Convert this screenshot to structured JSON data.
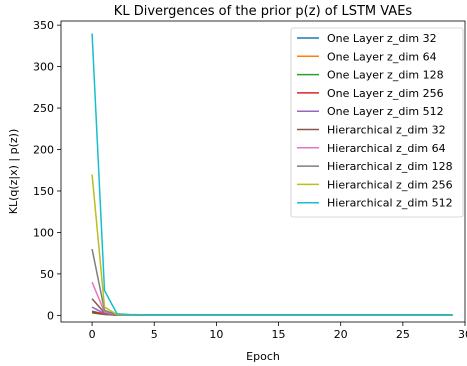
{
  "chart_data": {
    "type": "line",
    "title": "KL Divergences of the prior p(z) of LSTM VAEs",
    "xlabel": "Epoch",
    "ylabel": "KL(q(z|x) | p(z))",
    "xlim": [
      -2.5,
      30
    ],
    "ylim": [
      -8,
      355
    ],
    "xticks": [
      0,
      5,
      10,
      15,
      20,
      25,
      30
    ],
    "yticks": [
      0,
      50,
      100,
      150,
      200,
      250,
      300,
      350
    ],
    "grid": false,
    "legend_position": "top-right",
    "x": [
      0,
      1,
      2,
      3,
      4,
      5,
      6,
      7,
      8,
      9,
      10,
      11,
      12,
      13,
      14,
      15,
      16,
      17,
      18,
      19,
      20,
      21,
      22,
      23,
      24,
      25,
      26,
      27,
      28,
      29
    ],
    "series": [
      {
        "name": "One Layer z_dim 32",
        "color": "#1f77b4",
        "values": [
          5,
          1.5,
          0.3,
          0.2,
          0.2,
          0.2,
          0.2,
          0.2,
          0.2,
          0.2,
          0.2,
          0.2,
          0.2,
          0.2,
          0.2,
          0.2,
          0.2,
          0.2,
          0.2,
          0.2,
          0.2,
          0.2,
          0.2,
          0.2,
          0.2,
          0.2,
          0.2,
          0.2,
          0.2,
          0.2
        ]
      },
      {
        "name": "One Layer z_dim 64",
        "color": "#ff7f0e",
        "values": [
          4,
          1.2,
          0.3,
          0.2,
          0.2,
          0.2,
          0.2,
          0.2,
          0.2,
          0.2,
          0.2,
          0.2,
          0.2,
          0.2,
          0.2,
          0.2,
          0.2,
          0.2,
          0.2,
          0.2,
          0.2,
          0.2,
          0.2,
          0.2,
          0.2,
          0.2,
          0.2,
          0.2,
          0.2,
          0.2
        ]
      },
      {
        "name": "One Layer z_dim 128",
        "color": "#2ca02c",
        "values": [
          3,
          1,
          0.3,
          0.2,
          0.2,
          0.2,
          0.2,
          0.2,
          0.2,
          0.2,
          0.2,
          0.2,
          0.2,
          0.2,
          0.2,
          0.2,
          0.2,
          0.2,
          0.2,
          0.2,
          0.2,
          0.2,
          0.2,
          0.2,
          0.2,
          0.2,
          0.2,
          0.2,
          0.2,
          0.2
        ]
      },
      {
        "name": "One Layer z_dim 256",
        "color": "#d62728",
        "values": [
          4,
          1.5,
          0.3,
          0.2,
          0.2,
          0.2,
          0.2,
          0.2,
          0.2,
          0.2,
          0.2,
          0.2,
          0.2,
          0.2,
          0.2,
          0.2,
          0.2,
          0.2,
          0.2,
          0.2,
          0.2,
          0.2,
          0.2,
          0.2,
          0.2,
          0.2,
          0.2,
          0.2,
          0.2,
          0.2
        ]
      },
      {
        "name": "One Layer z_dim 512",
        "color": "#9467bd",
        "values": [
          10,
          2,
          0.4,
          0.2,
          0.2,
          0.2,
          0.2,
          0.2,
          0.2,
          0.2,
          0.2,
          0.2,
          0.2,
          0.2,
          0.2,
          0.2,
          0.2,
          0.2,
          0.2,
          0.2,
          0.2,
          0.2,
          0.2,
          0.2,
          0.2,
          0.2,
          0.2,
          0.2,
          0.2,
          0.2
        ]
      },
      {
        "name": "Hierarchical z_dim 32",
        "color": "#8c564b",
        "values": [
          20,
          3,
          0.5,
          0.3,
          0.3,
          0.3,
          0.3,
          0.3,
          0.3,
          0.3,
          0.3,
          0.3,
          0.3,
          0.3,
          0.3,
          0.3,
          0.3,
          0.3,
          0.3,
          0.3,
          0.3,
          0.3,
          0.3,
          0.3,
          0.3,
          0.3,
          0.3,
          0.3,
          0.3,
          0.3
        ]
      },
      {
        "name": "Hierarchical z_dim 64",
        "color": "#e377c2",
        "values": [
          40,
          4,
          0.5,
          0.3,
          0.3,
          0.3,
          0.3,
          0.3,
          0.3,
          0.3,
          0.3,
          0.3,
          0.3,
          0.3,
          0.3,
          0.3,
          0.3,
          0.3,
          0.3,
          0.3,
          0.3,
          0.3,
          0.3,
          0.3,
          0.3,
          0.3,
          0.3,
          0.3,
          0.3,
          0.3
        ]
      },
      {
        "name": "Hierarchical z_dim 128",
        "color": "#7f7f7f",
        "values": [
          80,
          6,
          0.6,
          0.3,
          0.3,
          0.3,
          0.3,
          0.3,
          0.3,
          0.3,
          0.3,
          0.3,
          0.3,
          0.3,
          0.3,
          0.3,
          0.3,
          0.3,
          0.3,
          0.3,
          0.3,
          0.3,
          0.3,
          0.3,
          0.3,
          0.3,
          0.3,
          0.3,
          0.3,
          0.3
        ]
      },
      {
        "name": "Hierarchical z_dim 256",
        "color": "#bcbd22",
        "values": [
          170,
          10,
          1,
          0.5,
          0.5,
          0.5,
          0.5,
          0.5,
          0.5,
          0.5,
          0.5,
          0.5,
          0.5,
          0.5,
          0.5,
          0.5,
          0.5,
          0.5,
          0.5,
          0.5,
          0.5,
          0.5,
          0.5,
          0.5,
          0.5,
          0.5,
          0.5,
          0.5,
          0.5,
          0.5
        ]
      },
      {
        "name": "Hierarchical z_dim 512",
        "color": "#17becf",
        "values": [
          340,
          30,
          2,
          1,
          0.8,
          0.8,
          0.8,
          0.8,
          0.8,
          0.8,
          0.8,
          0.8,
          0.8,
          0.8,
          0.8,
          0.8,
          0.8,
          0.8,
          0.8,
          0.8,
          0.8,
          0.8,
          0.8,
          0.8,
          0.8,
          0.8,
          0.8,
          0.8,
          0.8,
          0.8
        ]
      }
    ]
  }
}
